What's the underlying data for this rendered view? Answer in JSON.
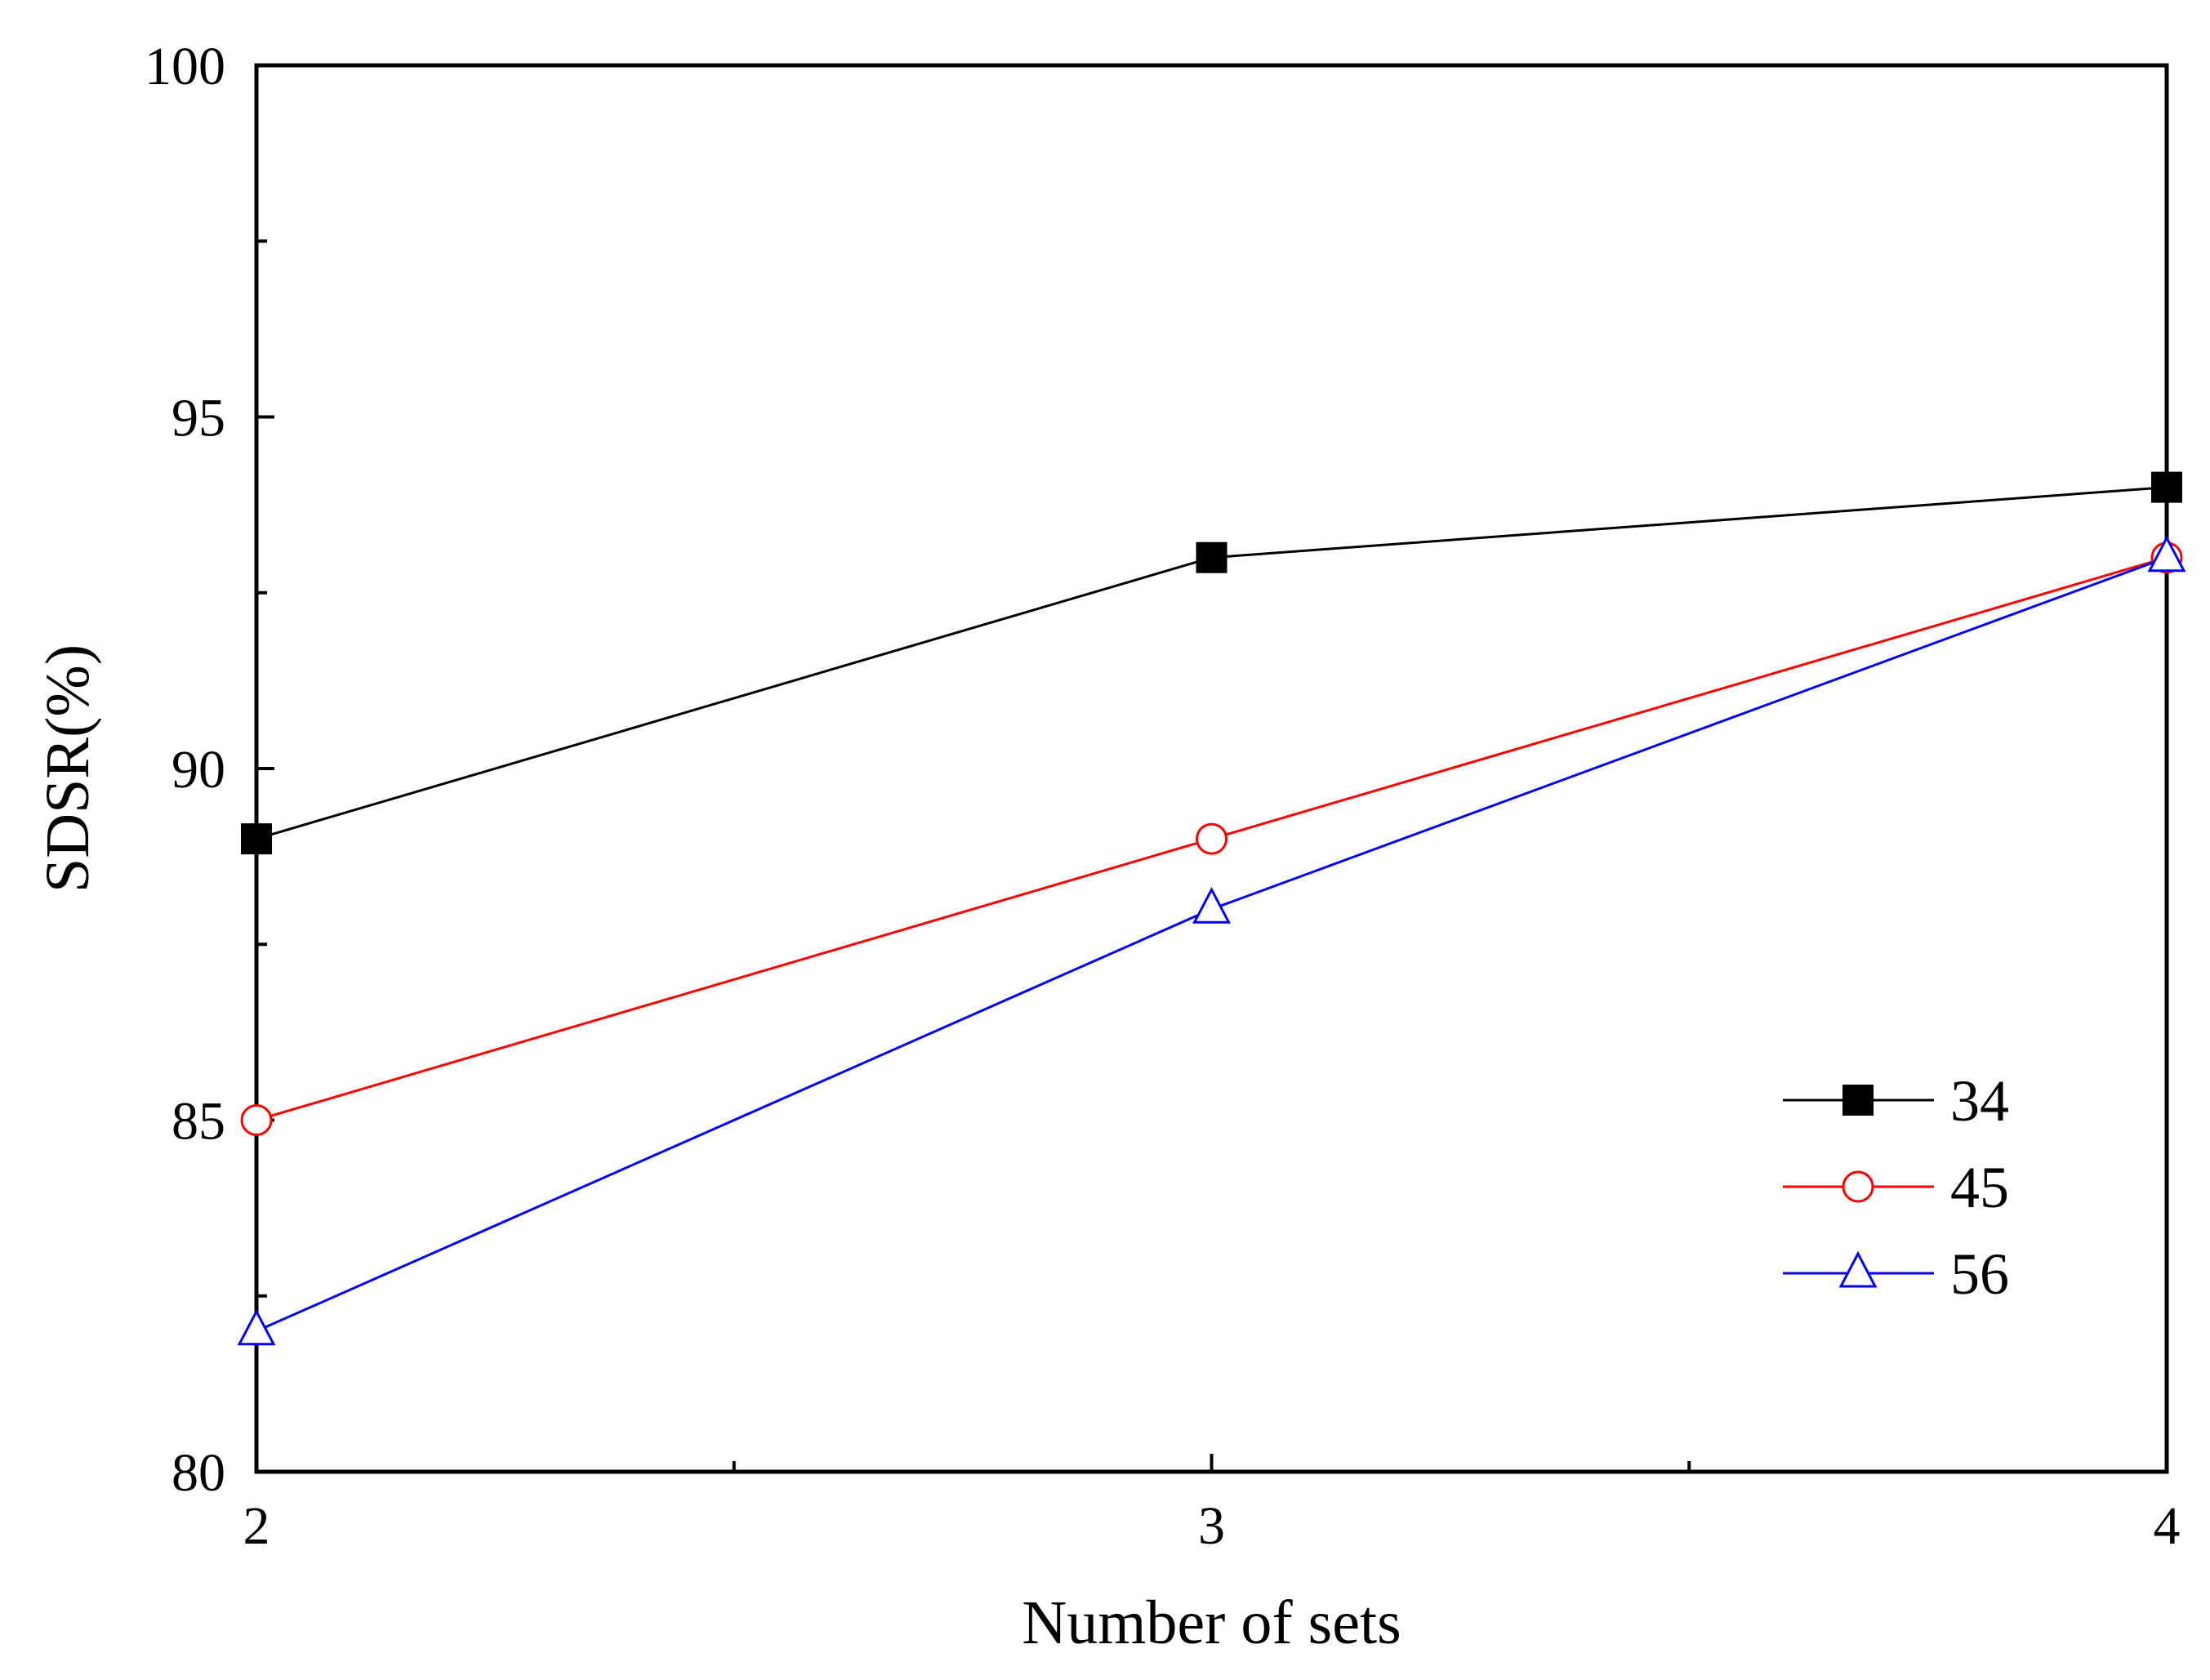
{
  "chart_data": {
    "type": "line",
    "title": "",
    "xlabel": "Number of sets",
    "ylabel": "SDSR(%)",
    "x": [
      2,
      3,
      4
    ],
    "xlim": [
      2,
      4
    ],
    "ylim": [
      80,
      100
    ],
    "x_ticks": [
      2,
      3,
      4
    ],
    "x_minor_ticks": [
      2.5,
      3.5
    ],
    "y_ticks": [
      80,
      85,
      90,
      95,
      100
    ],
    "y_minor_ticks": [
      82.5,
      87.5,
      92.5,
      97.5
    ],
    "grid": false,
    "legend_position": "bottom-right",
    "series": [
      {
        "name": "34",
        "values": [
          89,
          93,
          94
        ],
        "color": "#000000",
        "marker": "filled-square"
      },
      {
        "name": "45",
        "values": [
          85,
          89,
          93
        ],
        "color": "#ff0000",
        "marker": "open-circle"
      },
      {
        "name": "56",
        "values": [
          82,
          88,
          93
        ],
        "color": "#0000ff",
        "marker": "open-triangle"
      }
    ]
  }
}
